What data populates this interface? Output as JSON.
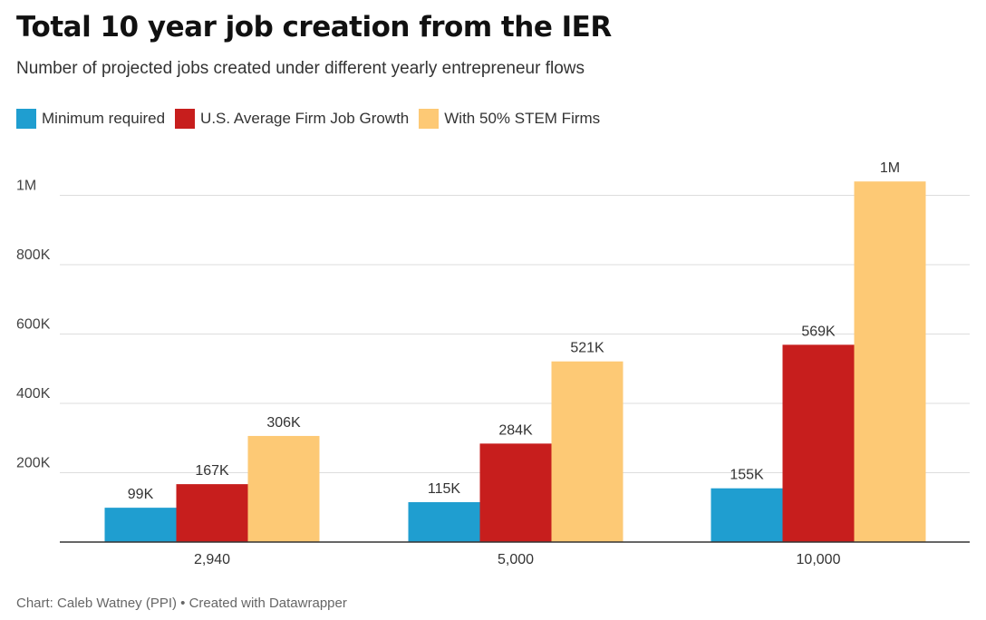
{
  "chart_data": {
    "type": "bar",
    "title": "Total 10 year job creation from the IER",
    "subtitle": "Number of projected jobs created under different yearly entrepreneur flows",
    "categories": [
      "2,940",
      "5,000",
      "10,000"
    ],
    "series": [
      {
        "name": "Minimum required",
        "color": "#1f9ed0",
        "values": [
          99000,
          115000,
          155000
        ],
        "labels": [
          "99K",
          "115K",
          "155K"
        ]
      },
      {
        "name": "U.S. Average Firm Job Growth",
        "color": "#c71e1d",
        "values": [
          167000,
          284000,
          569000
        ],
        "labels": [
          "167K",
          "284K",
          "569K"
        ]
      },
      {
        "name": "With 50% STEM Firms",
        "color": "#fdc975",
        "values": [
          306000,
          521000,
          1040000
        ],
        "labels": [
          "306K",
          "521K",
          "1M"
        ]
      }
    ],
    "ylim": [
      0,
      1100000
    ],
    "yticks": [
      200000,
      400000,
      600000,
      800000,
      1000000
    ],
    "ytick_labels": [
      "200K",
      "400K",
      "600K",
      "800K",
      "1M"
    ],
    "grid": true,
    "legend_position": "top-left",
    "xlabel": "",
    "ylabel": ""
  },
  "footer": {
    "source": "Chart: Caleb Watney (PPI) • Created with Datawrapper"
  }
}
